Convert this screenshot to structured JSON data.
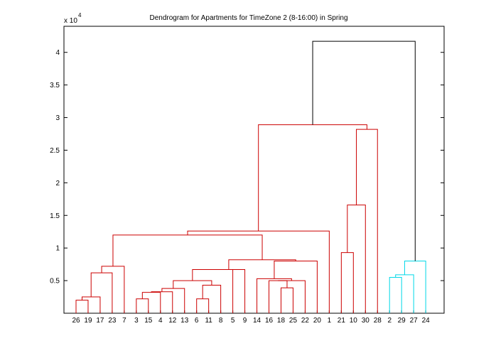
{
  "chart_data": {
    "type": "dendrogram",
    "title": "Dendrogram for   Apartments for TimeZone 2 (8-16:00) in Spring",
    "xlabel": "",
    "ylabel": "",
    "y_multiplier_label": "x 10",
    "y_multiplier_exponent": "4",
    "ylim": [
      0,
      44000
    ],
    "yticks": [
      {
        "value": 5000,
        "label": "0.5"
      },
      {
        "value": 10000,
        "label": "1"
      },
      {
        "value": 15000,
        "label": "1.5"
      },
      {
        "value": 20000,
        "label": "2"
      },
      {
        "value": 25000,
        "label": "2.5"
      },
      {
        "value": 30000,
        "label": "3"
      },
      {
        "value": 35000,
        "label": "3.5"
      },
      {
        "value": 40000,
        "label": "4"
      }
    ],
    "leaf_order": [
      "26",
      "19",
      "17",
      "23",
      "7",
      "3",
      "15",
      "4",
      "12",
      "13",
      "6",
      "11",
      "8",
      "5",
      "9",
      "14",
      "16",
      "18",
      "25",
      "22",
      "20",
      "1",
      "21",
      "10",
      "30",
      "28",
      "2",
      "29",
      "27",
      "24"
    ],
    "colors": {
      "red_cluster": "#cc0000",
      "cyan_cluster": "#00d8e8",
      "root_link": "#000000"
    },
    "links": [
      {
        "id": "a",
        "left": "26",
        "right": "19",
        "height": 2000,
        "color": "red"
      },
      {
        "id": "b",
        "left": "a",
        "right": "17",
        "height": 2500,
        "color": "red"
      },
      {
        "id": "c",
        "left": "b",
        "right": "23",
        "height": 6200,
        "color": "red"
      },
      {
        "id": "d",
        "left": "c",
        "right": "7",
        "height": 7200,
        "color": "red"
      },
      {
        "id": "e",
        "left": "3",
        "right": "15",
        "height": 2200,
        "color": "red"
      },
      {
        "id": "f",
        "left": "e",
        "right": "4",
        "height": 3200,
        "color": "red"
      },
      {
        "id": "g",
        "left": "f",
        "right": "12",
        "height": 3300,
        "color": "red"
      },
      {
        "id": "h",
        "left": "g",
        "right": "13",
        "height": 3800,
        "color": "red"
      },
      {
        "id": "i",
        "left": "6",
        "right": "11",
        "height": 2200,
        "color": "red"
      },
      {
        "id": "j",
        "left": "i",
        "right": "8",
        "height": 4300,
        "color": "red"
      },
      {
        "id": "k",
        "left": "h",
        "right": "j",
        "height": 5000,
        "color": "red"
      },
      {
        "id": "l",
        "left": "k",
        "right": "5",
        "height": 6700,
        "color": "red"
      },
      {
        "id": "m",
        "left": "l",
        "right": "9",
        "height": 6700,
        "color": "red"
      },
      {
        "id": "n",
        "left": "18",
        "right": "25",
        "height": 3900,
        "color": "red"
      },
      {
        "id": "o",
        "left": "16",
        "right": "n",
        "height": 5000,
        "color": "red"
      },
      {
        "id": "p",
        "left": "o",
        "right": "22",
        "height": 5000,
        "color": "red"
      },
      {
        "id": "q",
        "left": "14",
        "right": "p",
        "height": 5300,
        "color": "red"
      },
      {
        "id": "r",
        "left": "q",
        "right": "20",
        "height": 8000,
        "color": "red"
      },
      {
        "id": "s",
        "left": "m",
        "right": "r",
        "height": 8200,
        "color": "red"
      },
      {
        "id": "t",
        "left": "d",
        "right": "s",
        "height": 12000,
        "color": "red"
      },
      {
        "id": "u",
        "left": "t",
        "right": "1",
        "height": 12600,
        "color": "red"
      },
      {
        "id": "v",
        "left": "21",
        "right": "10",
        "height": 9300,
        "color": "red"
      },
      {
        "id": "w",
        "left": "v",
        "right": "30",
        "height": 16600,
        "color": "red"
      },
      {
        "id": "x",
        "left": "w",
        "right": "28",
        "height": 28200,
        "color": "red"
      },
      {
        "id": "y",
        "left": "u",
        "right": "x",
        "height": 28900,
        "color": "red"
      },
      {
        "id": "z",
        "left": "2",
        "right": "29",
        "height": 5500,
        "color": "cyan"
      },
      {
        "id": "aa",
        "left": "z",
        "right": "27",
        "height": 5900,
        "color": "cyan"
      },
      {
        "id": "bb",
        "left": "aa",
        "right": "24",
        "height": 8000,
        "color": "cyan"
      },
      {
        "id": "cc",
        "left": "y",
        "right": "bb",
        "height": 41700,
        "color": "black"
      }
    ]
  }
}
